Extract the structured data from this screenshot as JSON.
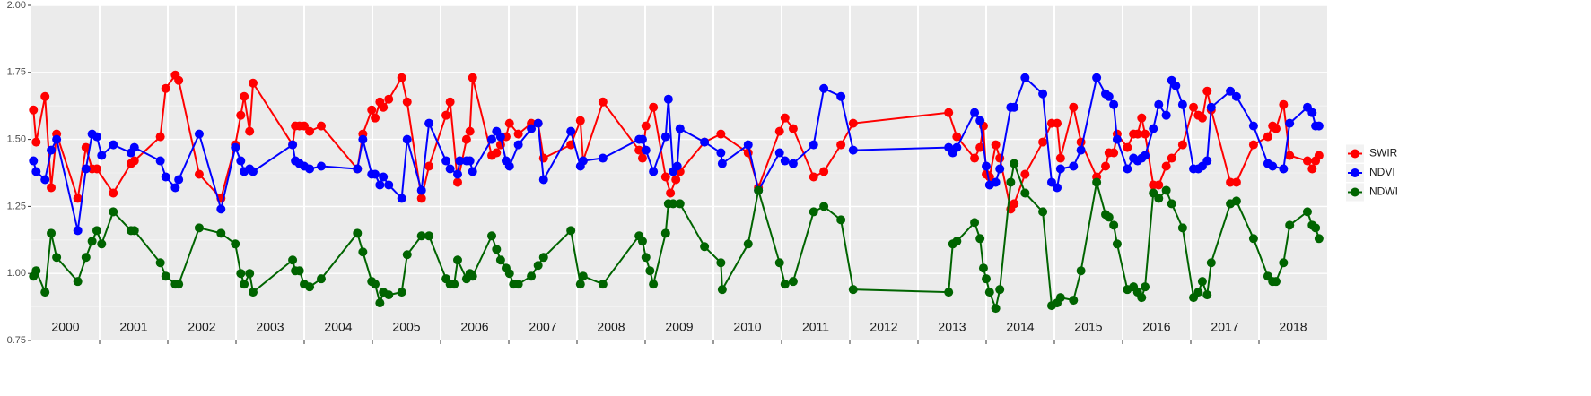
{
  "chart_data": {
    "type": "line",
    "legend": "right",
    "grid": true,
    "background": "#ebebeb",
    "xlim": [
      2000,
      2019
    ],
    "xticks": [
      {
        "value": 2000.5,
        "label": "2000"
      },
      {
        "value": 2001.5,
        "label": "2001"
      },
      {
        "value": 2002.5,
        "label": "2002"
      },
      {
        "value": 2003.5,
        "label": "2003"
      },
      {
        "value": 2004.5,
        "label": "2004"
      },
      {
        "value": 2005.5,
        "label": "2005"
      },
      {
        "value": 2006.5,
        "label": "2006"
      },
      {
        "value": 2007.5,
        "label": "2007"
      },
      {
        "value": 2008.5,
        "label": "2008"
      },
      {
        "value": 2009.5,
        "label": "2009"
      },
      {
        "value": 2010.5,
        "label": "2010"
      },
      {
        "value": 2011.5,
        "label": "2011"
      },
      {
        "value": 2012.5,
        "label": "2012"
      },
      {
        "value": 2013.5,
        "label": "2013"
      },
      {
        "value": 2014.5,
        "label": "2014"
      },
      {
        "value": 2015.5,
        "label": "2015"
      },
      {
        "value": 2016.5,
        "label": "2016"
      },
      {
        "value": 2017.5,
        "label": "2017"
      },
      {
        "value": 2018.5,
        "label": "2018"
      }
    ],
    "xgrid": [
      2001,
      2002,
      2003,
      2004,
      2005,
      2006,
      2007,
      2008,
      2009,
      2010,
      2011,
      2012,
      2013,
      2014,
      2015,
      2016,
      2017,
      2018
    ],
    "ylim": [
      0.75,
      2.0
    ],
    "yticks": [
      {
        "value": 0.75,
        "label": "0.75"
      },
      {
        "value": 1,
        "label": "1.00"
      },
      1.25,
      {
        "value": 1.5,
        "label": "1.50"
      },
      1.75,
      {
        "value": 2,
        "label": "2.00"
      }
    ],
    "series": [
      {
        "name": "SWIR",
        "color": "#ff0000",
        "x": [
          2000.03,
          2000.07,
          2000.2,
          2000.29,
          2000.37,
          2000.68,
          2000.8,
          2000.89,
          2000.96,
          2001.2,
          2001.46,
          2001.51,
          2001.89,
          2001.97,
          2002.11,
          2002.16,
          2002.46,
          2002.78,
          2002.99,
          2003.07,
          2003.12,
          2003.2,
          2003.25,
          2003.83,
          2003.87,
          2003.93,
          2004.0,
          2004.08,
          2004.25,
          2004.78,
          2004.86,
          2004.99,
          2005.04,
          2005.11,
          2005.16,
          2005.24,
          2005.43,
          2005.51,
          2005.72,
          2005.83,
          2006.08,
          2006.14,
          2006.25,
          2006.38,
          2006.43,
          2006.47,
          2006.75,
          2006.82,
          2006.88,
          2006.96,
          2007.01,
          2007.14,
          2007.33,
          2007.43,
          2007.51,
          2007.91,
          2008.05,
          2008.09,
          2008.38,
          2008.91,
          2008.96,
          2009.01,
          2009.12,
          2009.3,
          2009.37,
          2009.45,
          2009.51,
          2009.87,
          2010.11,
          2010.51,
          2010.66,
          2010.97,
          2011.05,
          2011.17,
          2011.47,
          2011.62,
          2011.87,
          2012.05,
          2013.45,
          2013.57,
          2013.83,
          2013.91,
          2013.96,
          2014.0,
          2014.05,
          2014.14,
          2014.2,
          2014.36,
          2014.41,
          2014.57,
          2014.83,
          2014.96,
          2015.04,
          2015.09,
          2015.28,
          2015.39,
          2015.62,
          2015.75,
          2015.8,
          2015.87,
          2015.92,
          2016.07,
          2016.16,
          2016.22,
          2016.28,
          2016.33,
          2016.45,
          2016.53,
          2016.64,
          2016.72,
          2016.88,
          2017.04,
          2017.11,
          2017.17,
          2017.24,
          2017.3,
          2017.58,
          2017.67,
          2017.92,
          2018.13,
          2018.2,
          2018.25,
          2018.36,
          2018.45,
          2018.71,
          2018.78,
          2018.83,
          2018.88
        ],
        "values": [
          1.61,
          1.49,
          1.66,
          1.32,
          1.52,
          1.28,
          1.47,
          1.39,
          1.39,
          1.3,
          1.41,
          1.42,
          1.51,
          1.69,
          1.74,
          1.72,
          1.37,
          1.28,
          1.48,
          1.59,
          1.66,
          1.53,
          1.71,
          1.48,
          1.55,
          1.55,
          1.55,
          1.53,
          1.55,
          1.39,
          1.52,
          1.61,
          1.58,
          1.64,
          1.62,
          1.65,
          1.73,
          1.64,
          1.28,
          1.4,
          1.59,
          1.64,
          1.34,
          1.5,
          1.53,
          1.73,
          1.44,
          1.45,
          1.48,
          1.51,
          1.56,
          1.52,
          1.56,
          1.56,
          1.43,
          1.48,
          1.57,
          1.42,
          1.64,
          1.46,
          1.43,
          1.55,
          1.62,
          1.36,
          1.3,
          1.35,
          1.38,
          1.49,
          1.52,
          1.45,
          1.32,
          1.53,
          1.58,
          1.54,
          1.36,
          1.38,
          1.48,
          1.56,
          1.6,
          1.51,
          1.43,
          1.47,
          1.55,
          1.37,
          1.36,
          1.48,
          1.43,
          1.24,
          1.26,
          1.37,
          1.49,
          1.56,
          1.56,
          1.43,
          1.62,
          1.49,
          1.36,
          1.4,
          1.45,
          1.45,
          1.52,
          1.47,
          1.52,
          1.52,
          1.58,
          1.52,
          1.33,
          1.33,
          1.4,
          1.43,
          1.48,
          1.62,
          1.59,
          1.58,
          1.68,
          1.61,
          1.34,
          1.34,
          1.48,
          1.51,
          1.55,
          1.54,
          1.63,
          1.44,
          1.42,
          1.39,
          1.42,
          1.44
        ]
      },
      {
        "name": "NDVI",
        "color": "#0000ff",
        "x": [
          2000.03,
          2000.07,
          2000.2,
          2000.29,
          2000.37,
          2000.68,
          2000.8,
          2000.89,
          2000.96,
          2001.03,
          2001.2,
          2001.46,
          2001.51,
          2001.89,
          2001.97,
          2002.11,
          2002.16,
          2002.46,
          2002.78,
          2002.99,
          2003.07,
          2003.12,
          2003.2,
          2003.25,
          2003.83,
          2003.87,
          2003.93,
          2004.0,
          2004.08,
          2004.25,
          2004.78,
          2004.86,
          2004.99,
          2005.04,
          2005.11,
          2005.16,
          2005.24,
          2005.43,
          2005.51,
          2005.72,
          2005.83,
          2006.08,
          2006.14,
          2006.25,
          2006.28,
          2006.38,
          2006.43,
          2006.47,
          2006.75,
          2006.82,
          2006.88,
          2006.96,
          2007.01,
          2007.14,
          2007.33,
          2007.43,
          2007.51,
          2007.91,
          2008.05,
          2008.09,
          2008.38,
          2008.91,
          2008.96,
          2009.01,
          2009.12,
          2009.3,
          2009.34,
          2009.41,
          2009.47,
          2009.51,
          2009.87,
          2010.11,
          2010.13,
          2010.51,
          2010.66,
          2010.97,
          2011.05,
          2011.17,
          2011.47,
          2011.62,
          2011.87,
          2012.05,
          2013.45,
          2013.51,
          2013.57,
          2013.83,
          2013.91,
          2014.0,
          2014.05,
          2014.14,
          2014.2,
          2014.36,
          2014.41,
          2014.57,
          2014.83,
          2014.96,
          2015.04,
          2015.09,
          2015.28,
          2015.39,
          2015.62,
          2015.75,
          2015.8,
          2015.87,
          2015.92,
          2016.07,
          2016.16,
          2016.22,
          2016.28,
          2016.33,
          2016.45,
          2016.53,
          2016.64,
          2016.72,
          2016.78,
          2016.88,
          2017.04,
          2017.11,
          2017.17,
          2017.24,
          2017.3,
          2017.58,
          2017.67,
          2017.92,
          2018.13,
          2018.2,
          2018.36,
          2018.45,
          2018.71,
          2018.78,
          2018.83,
          2018.88
        ],
        "values": [
          1.42,
          1.38,
          1.35,
          1.46,
          1.5,
          1.16,
          1.39,
          1.52,
          1.51,
          1.44,
          1.48,
          1.45,
          1.47,
          1.42,
          1.36,
          1.32,
          1.35,
          1.52,
          1.24,
          1.47,
          1.42,
          1.38,
          1.39,
          1.38,
          1.48,
          1.42,
          1.41,
          1.4,
          1.39,
          1.4,
          1.39,
          1.5,
          1.37,
          1.37,
          1.33,
          1.36,
          1.33,
          1.28,
          1.5,
          1.31,
          1.56,
          1.42,
          1.39,
          1.37,
          1.42,
          1.42,
          1.42,
          1.38,
          1.5,
          1.53,
          1.51,
          1.42,
          1.4,
          1.48,
          1.54,
          1.56,
          1.35,
          1.53,
          1.4,
          1.42,
          1.43,
          1.5,
          1.5,
          1.46,
          1.38,
          1.51,
          1.65,
          1.38,
          1.4,
          1.54,
          1.49,
          1.45,
          1.41,
          1.48,
          1.31,
          1.45,
          1.42,
          1.41,
          1.48,
          1.69,
          1.66,
          1.46,
          1.47,
          1.45,
          1.47,
          1.6,
          1.57,
          1.4,
          1.33,
          1.34,
          1.39,
          1.62,
          1.62,
          1.73,
          1.67,
          1.34,
          1.32,
          1.39,
          1.4,
          1.46,
          1.73,
          1.67,
          1.66,
          1.63,
          1.5,
          1.39,
          1.43,
          1.42,
          1.43,
          1.44,
          1.54,
          1.63,
          1.59,
          1.72,
          1.7,
          1.63,
          1.39,
          1.39,
          1.4,
          1.42,
          1.62,
          1.68,
          1.66,
          1.55,
          1.41,
          1.4,
          1.39,
          1.56,
          1.62,
          1.6,
          1.55,
          1.55
        ]
      },
      {
        "name": "NDWI",
        "color": "#006400",
        "x": [
          2000.03,
          2000.07,
          2000.2,
          2000.29,
          2000.37,
          2000.68,
          2000.8,
          2000.89,
          2000.96,
          2001.03,
          2001.2,
          2001.46,
          2001.51,
          2001.89,
          2001.97,
          2002.11,
          2002.16,
          2002.46,
          2002.78,
          2002.99,
          2003.07,
          2003.12,
          2003.2,
          2003.25,
          2003.83,
          2003.87,
          2003.93,
          2004.0,
          2004.08,
          2004.25,
          2004.78,
          2004.86,
          2004.99,
          2005.04,
          2005.11,
          2005.16,
          2005.24,
          2005.43,
          2005.51,
          2005.72,
          2005.83,
          2006.08,
          2006.14,
          2006.2,
          2006.25,
          2006.38,
          2006.43,
          2006.47,
          2006.75,
          2006.82,
          2006.88,
          2006.96,
          2007.01,
          2007.07,
          2007.14,
          2007.33,
          2007.43,
          2007.51,
          2007.91,
          2008.05,
          2008.09,
          2008.38,
          2008.91,
          2008.96,
          2009.01,
          2009.07,
          2009.12,
          2009.3,
          2009.34,
          2009.41,
          2009.51,
          2009.87,
          2010.11,
          2010.13,
          2010.51,
          2010.66,
          2010.97,
          2011.05,
          2011.17,
          2011.47,
          2011.62,
          2011.87,
          2012.05,
          2013.45,
          2013.51,
          2013.57,
          2013.83,
          2013.91,
          2013.96,
          2014.0,
          2014.05,
          2014.14,
          2014.2,
          2014.36,
          2014.41,
          2014.57,
          2014.83,
          2014.96,
          2015.04,
          2015.09,
          2015.28,
          2015.39,
          2015.62,
          2015.75,
          2015.8,
          2015.87,
          2015.92,
          2016.07,
          2016.16,
          2016.22,
          2016.28,
          2016.33,
          2016.45,
          2016.53,
          2016.64,
          2016.72,
          2016.88,
          2017.04,
          2017.11,
          2017.17,
          2017.24,
          2017.3,
          2017.58,
          2017.67,
          2017.92,
          2018.13,
          2018.2,
          2018.25,
          2018.36,
          2018.45,
          2018.71,
          2018.78,
          2018.83,
          2018.88
        ],
        "values": [
          0.99,
          1.01,
          0.93,
          1.15,
          1.06,
          0.97,
          1.06,
          1.12,
          1.16,
          1.11,
          1.23,
          1.16,
          1.16,
          1.04,
          0.99,
          0.96,
          0.96,
          1.17,
          1.15,
          1.11,
          1.0,
          0.96,
          1.0,
          0.93,
          1.05,
          1.01,
          1.01,
          0.96,
          0.95,
          0.98,
          1.15,
          1.08,
          0.97,
          0.96,
          0.89,
          0.93,
          0.92,
          0.93,
          1.07,
          1.14,
          1.14,
          0.98,
          0.96,
          0.96,
          1.05,
          0.98,
          1.0,
          0.99,
          1.14,
          1.09,
          1.05,
          1.02,
          1.0,
          0.96,
          0.96,
          0.99,
          1.03,
          1.06,
          1.16,
          0.96,
          0.99,
          0.96,
          1.14,
          1.12,
          1.06,
          1.01,
          0.96,
          1.15,
          1.26,
          1.26,
          1.26,
          1.1,
          1.04,
          0.94,
          1.11,
          1.31,
          1.04,
          0.96,
          0.97,
          1.23,
          1.25,
          1.2,
          0.94,
          0.93,
          1.11,
          1.12,
          1.19,
          1.13,
          1.02,
          0.98,
          0.93,
          0.87,
          0.94,
          1.34,
          1.41,
          1.3,
          1.23,
          0.88,
          0.89,
          0.91,
          0.9,
          1.01,
          1.34,
          1.22,
          1.21,
          1.18,
          1.11,
          0.94,
          0.95,
          0.93,
          0.91,
          0.95,
          1.3,
          1.28,
          1.31,
          1.26,
          1.17,
          0.91,
          0.93,
          0.97,
          0.92,
          1.04,
          1.26,
          1.27,
          1.13,
          0.99,
          0.97,
          0.97,
          1.04,
          1.18,
          1.23,
          1.18,
          1.17,
          1.13
        ]
      }
    ]
  }
}
